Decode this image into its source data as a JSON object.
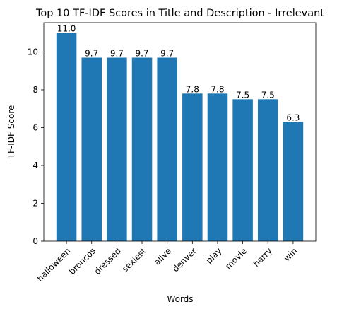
{
  "chart_data": {
    "type": "bar",
    "title": "Top 10 TF-IDF Scores in Title and Description - Irrelevant",
    "xlabel": "Words",
    "ylabel": "TF-IDF Score",
    "categories": [
      "halloween",
      "broncos",
      "dressed",
      "sexiest",
      "alive",
      "denver",
      "play",
      "movie",
      "harry",
      "win"
    ],
    "values": [
      11.0,
      9.7,
      9.7,
      9.7,
      9.7,
      7.8,
      7.8,
      7.5,
      7.5,
      6.3
    ],
    "value_labels": [
      "11.0",
      "9.7",
      "9.7",
      "9.7",
      "9.7",
      "7.8",
      "7.8",
      "7.5",
      "7.5",
      "6.3"
    ],
    "yticks": [
      0,
      2,
      4,
      6,
      8,
      10
    ],
    "ylim": [
      0,
      11.55
    ],
    "bar_color": "#1f77b4",
    "grid": false,
    "legend": "none"
  }
}
